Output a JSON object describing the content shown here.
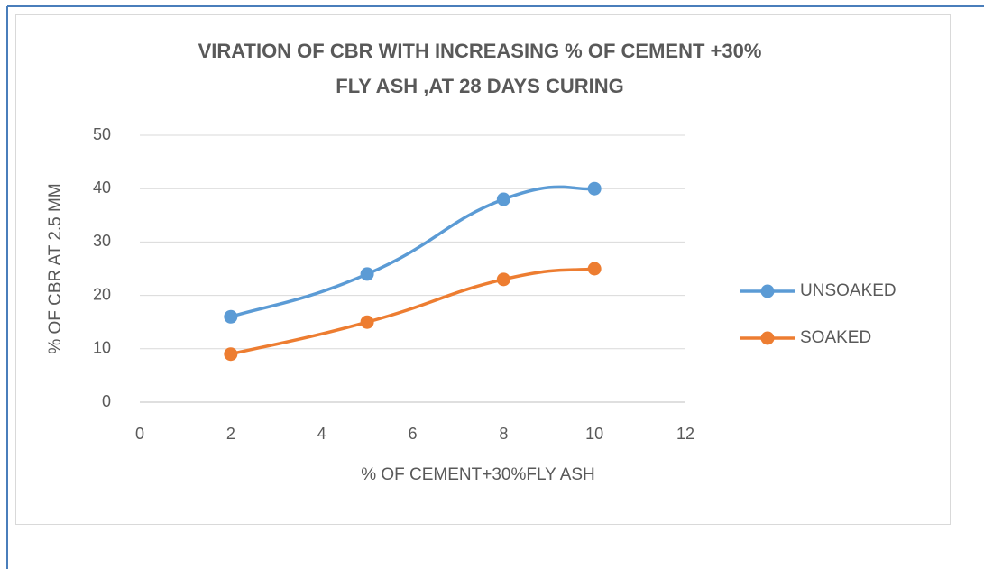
{
  "chart_data": {
    "type": "line",
    "title": [
      "VIRATION OF CBR WITH INCREASING % OF CEMENT +30%",
      "FLY ASH  ,AT 28 DAYS CURING"
    ],
    "x_label": "% OF CEMENT+30%FLY ASH",
    "y_label": "% OF CBR AT 2.5 MM",
    "x": [
      2,
      5,
      8,
      10
    ],
    "series": [
      {
        "name": "UNSOAKED",
        "color": "#5b9bd5",
        "values": [
          16,
          24,
          38,
          40
        ]
      },
      {
        "name": "SOAKED",
        "color": "#ed7d31",
        "values": [
          9,
          15,
          23,
          25
        ]
      }
    ],
    "xlim": [
      0,
      12
    ],
    "xticks": [
      0,
      2,
      4,
      6,
      8,
      10,
      12
    ],
    "ylim": [
      0,
      50
    ],
    "yticks": [
      0,
      10,
      20,
      30,
      40,
      50
    ],
    "grid": true,
    "smooth": true,
    "legend": "right"
  }
}
